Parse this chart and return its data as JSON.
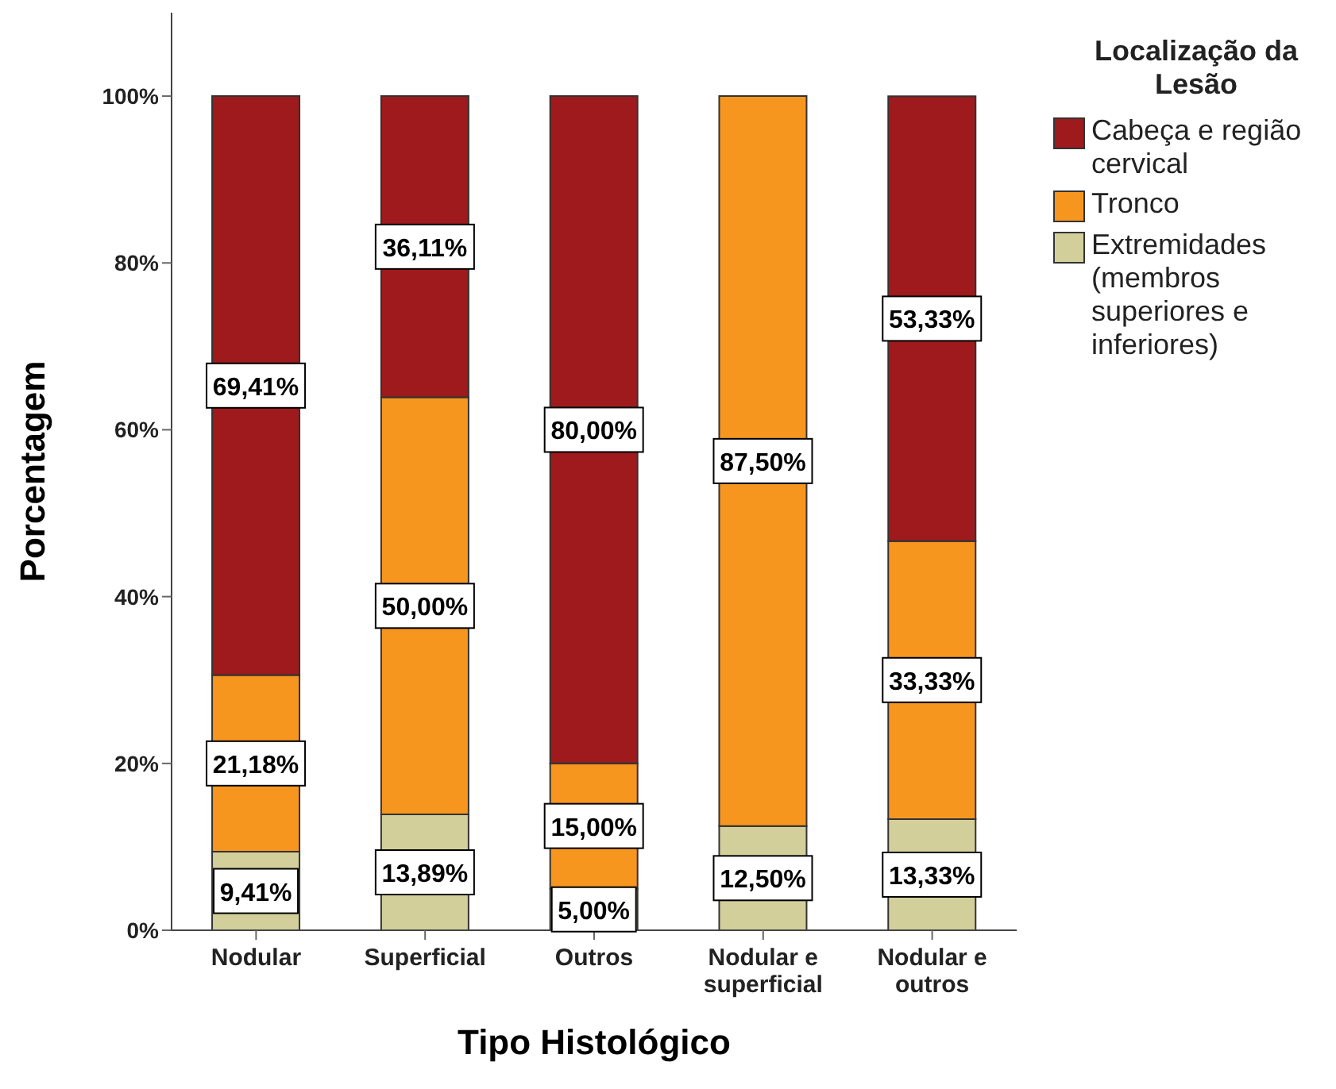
{
  "chart_data": {
    "type": "bar",
    "stacked": true,
    "xlabel": "Tipo Histológico",
    "ylabel": "Porcentagem",
    "legend_title": "Localização da Lesão",
    "legend": "right",
    "categories": [
      "Nodular",
      "Superficial",
      "Outros",
      "Nodular e superficial",
      "Nodular e outros"
    ],
    "ylim": [
      0,
      110
    ],
    "yticks": [
      {
        "value": 0,
        "label": "0%"
      },
      {
        "value": 20,
        "label": "20%"
      },
      {
        "value": 40,
        "label": "40%"
      },
      {
        "value": 60,
        "label": "60%"
      },
      {
        "value": 80,
        "label": "80%"
      },
      {
        "value": 100,
        "label": "100%"
      }
    ],
    "series": [
      {
        "name": "Extremidades (membros superiores e inferiores)",
        "color": "#d3cf9b",
        "values": [
          9.41,
          13.89,
          5.0,
          12.5,
          13.33
        ],
        "value_labels": [
          "9,41%",
          "13,89%",
          "5,00%",
          "12,50%",
          "13,33%"
        ]
      },
      {
        "name": "Tronco",
        "color": "#f7961f",
        "values": [
          21.18,
          50.0,
          15.0,
          87.5,
          33.33
        ],
        "value_labels": [
          "21,18%",
          "50,00%",
          "15,00%",
          "87,50%",
          "33,33%"
        ]
      },
      {
        "name": "Cabeça e região cervical",
        "color": "#9e1a1c",
        "values": [
          69.41,
          36.11,
          80.0,
          null,
          53.33
        ],
        "value_labels": [
          "69,41%",
          "36,11%",
          "80,00%",
          null,
          "53,33%"
        ]
      }
    ]
  }
}
